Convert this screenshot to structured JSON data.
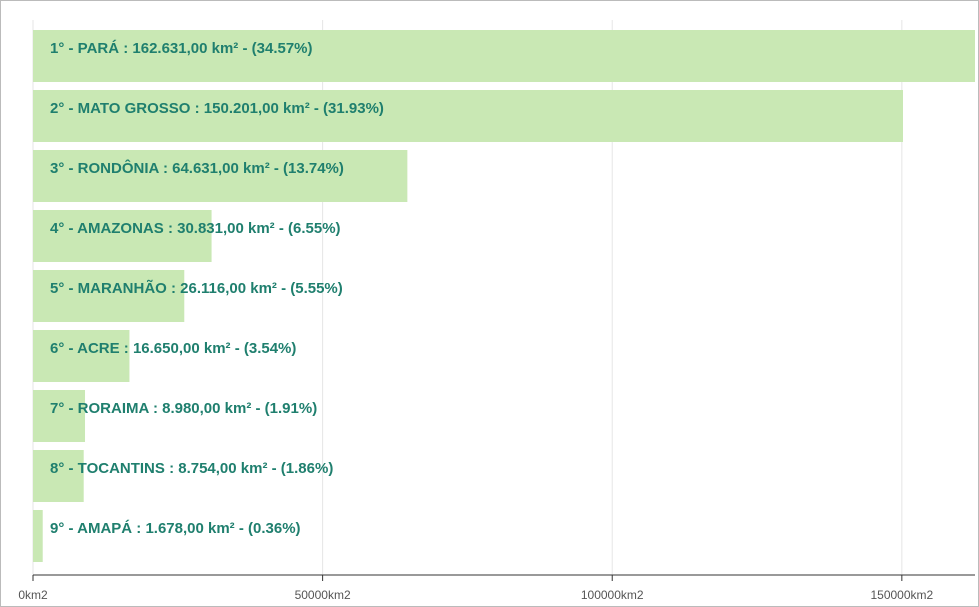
{
  "chart_data": {
    "type": "bar",
    "orientation": "horizontal",
    "color": "#c9e8b4",
    "values": [
      162631,
      150201,
      64631,
      30831,
      26116,
      16650,
      8980,
      8754,
      1678
    ],
    "value_labels": [
      "1° - PARÁ : 162.631,00 km² - (34.57%)",
      "2° - MATO GROSSO : 150.201,00 km² - (31.93%)",
      "3° - RONDÔNIA : 64.631,00 km² - (13.74%)",
      "4° - AMAZONAS : 30.831,00 km² - (6.55%)",
      "5° - MARANHÃO : 26.116,00 km² - (5.55%)",
      "6° - ACRE : 16.650,00 km² - (3.54%)",
      "7° - RORAIMA : 8.980,00 km² - (1.91%)",
      "8° - TOCANTINS : 8.754,00 km² - (1.86%)",
      "9° - AMAPÁ : 1.678,00 km² - (0.36%)"
    ],
    "xlim": [
      0,
      162631
    ],
    "xticks": [
      {
        "value": 0,
        "label": "0km2"
      },
      {
        "value": 50000,
        "label": "50000km2"
      },
      {
        "value": 100000,
        "label": "100000km2"
      },
      {
        "value": 150000,
        "label": "150000km2"
      }
    ],
    "grid": true
  }
}
